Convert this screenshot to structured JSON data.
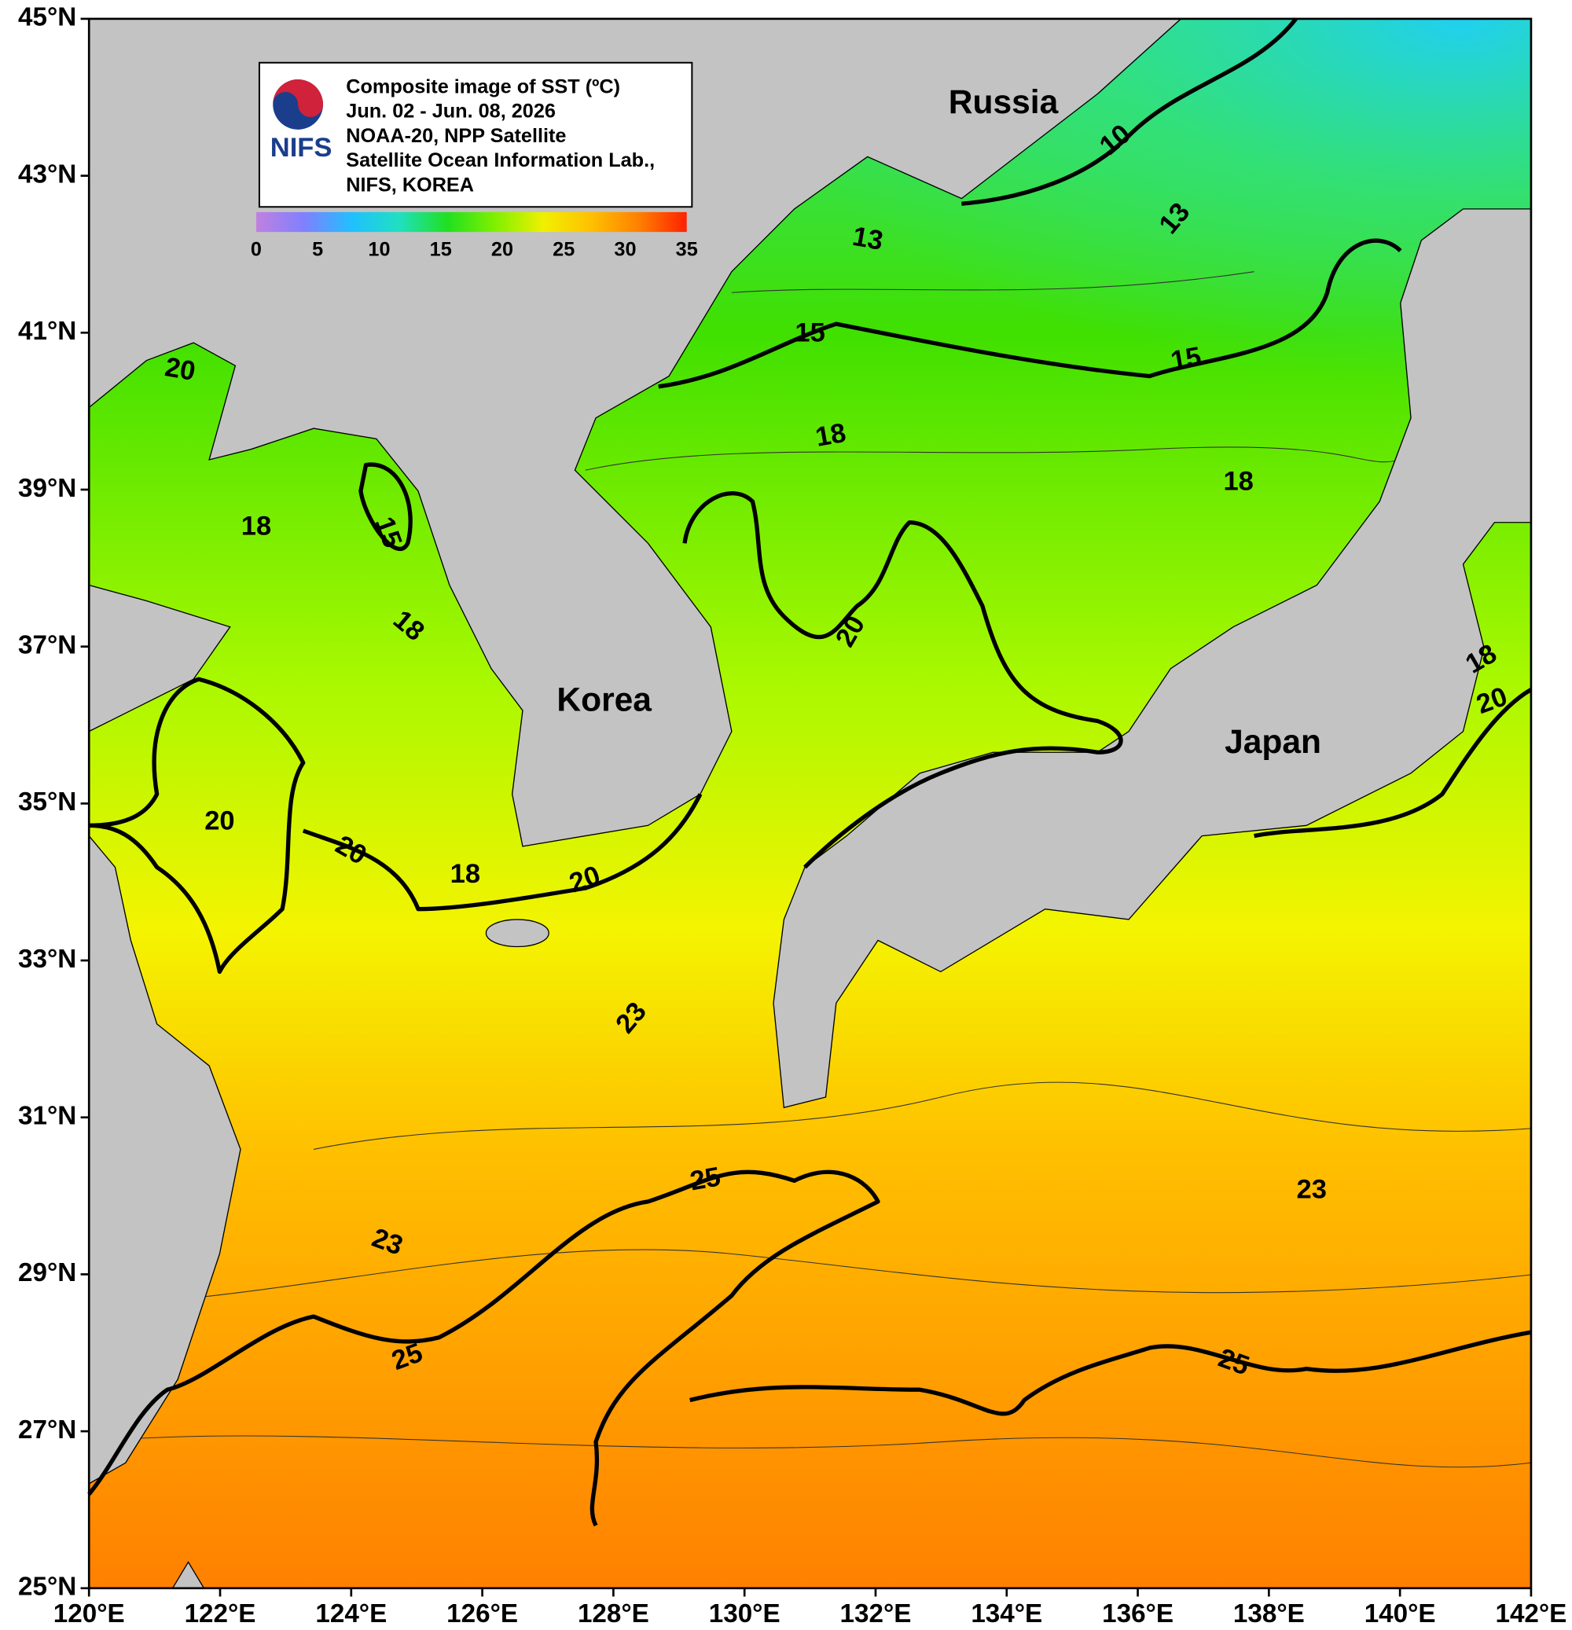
{
  "map": {
    "title_lines": [
      "Composite image of SST (ºC)",
      "Jun. 02 - Jun. 08, 2026",
      "NOAA-20, NPP Satellite",
      "Satellite Ocean Information Lab.,",
      "NIFS, KOREA"
    ],
    "logo_text": "NIFS",
    "places": [
      "Russia",
      "Korea",
      "Japan"
    ],
    "lon_range": [
      120,
      142
    ],
    "lat_range": [
      25,
      45
    ],
    "lon_ticks": [
      {
        "value": 120,
        "label": "120°E"
      },
      {
        "value": 122,
        "label": "122°E"
      },
      {
        "value": 124,
        "label": "124°E"
      },
      {
        "value": 126,
        "label": "126°E"
      },
      {
        "value": 128,
        "label": "128°E"
      },
      {
        "value": 130,
        "label": "130°E"
      },
      {
        "value": 132,
        "label": "132°E"
      },
      {
        "value": 134,
        "label": "134°E"
      },
      {
        "value": 136,
        "label": "136°E"
      },
      {
        "value": 138,
        "label": "138°E"
      },
      {
        "value": 140,
        "label": "140°E"
      },
      {
        "value": 142,
        "label": "142°E"
      }
    ],
    "lat_ticks": [
      {
        "value": 45,
        "label": "45°N"
      },
      {
        "value": 43,
        "label": "43°N"
      },
      {
        "value": 41,
        "label": "41°N"
      },
      {
        "value": 39,
        "label": "39°N"
      },
      {
        "value": 37,
        "label": "37°N"
      },
      {
        "value": 35,
        "label": "35°N"
      },
      {
        "value": 33,
        "label": "33°N"
      },
      {
        "value": 31,
        "label": "31°N"
      },
      {
        "value": 29,
        "label": "29°N"
      },
      {
        "value": 27,
        "label": "27°N"
      },
      {
        "value": 25,
        "label": "25°N"
      }
    ],
    "colorbar": {
      "range": [
        0,
        35
      ],
      "ticks": [
        0,
        5,
        10,
        15,
        20,
        25,
        30,
        35
      ],
      "colors": [
        "#c080e0",
        "#8080ff",
        "#20c0ff",
        "#20e0c0",
        "#20e020",
        "#80f000",
        "#f0f000",
        "#ffc000",
        "#ff8000",
        "#ff2000"
      ]
    },
    "contour_labels": [
      10,
      13,
      13,
      15,
      15,
      15,
      18,
      18,
      18,
      18,
      18,
      18,
      20,
      20,
      20,
      20,
      20,
      20,
      23,
      23,
      23,
      25,
      25,
      25
    ]
  }
}
